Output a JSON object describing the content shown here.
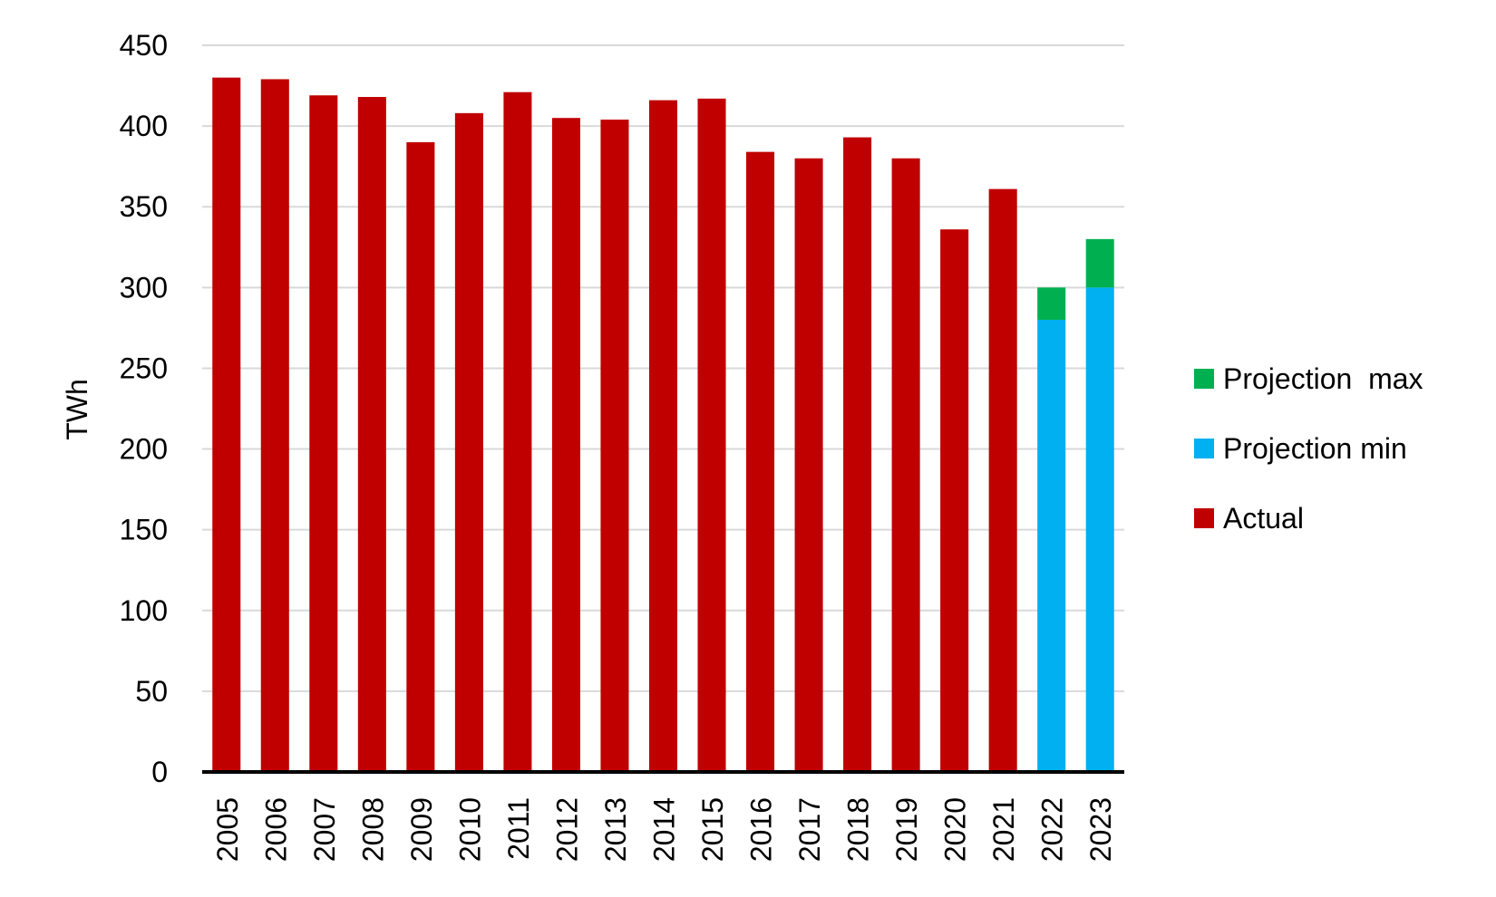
{
  "chart_data": {
    "type": "bar",
    "stacked": true,
    "title": "",
    "xlabel": "",
    "ylabel": "TWh",
    "ylim": [
      0,
      450
    ],
    "yticks": [
      0,
      50,
      100,
      150,
      200,
      250,
      300,
      350,
      400,
      450
    ],
    "grid": true,
    "legend_position": "right",
    "categories": [
      "2005",
      "2006",
      "2007",
      "2008",
      "2009",
      "2010",
      "2011",
      "2012",
      "2013",
      "2014",
      "2015",
      "2016",
      "2017",
      "2018",
      "2019",
      "2020",
      "2021",
      "2022",
      "2023"
    ],
    "series": [
      {
        "name": "Actual",
        "color": "#C00000",
        "values": [
          430,
          429,
          419,
          418,
          390,
          408,
          421,
          405,
          404,
          416,
          417,
          384,
          380,
          393,
          380,
          336,
          361,
          0,
          0
        ]
      },
      {
        "name": "Projection min",
        "color": "#00B0F0",
        "values": [
          0,
          0,
          0,
          0,
          0,
          0,
          0,
          0,
          0,
          0,
          0,
          0,
          0,
          0,
          0,
          0,
          0,
          280,
          300
        ]
      },
      {
        "name": "Projection  max",
        "color": "#00B050",
        "values": [
          0,
          0,
          0,
          0,
          0,
          0,
          0,
          0,
          0,
          0,
          0,
          0,
          0,
          0,
          0,
          0,
          0,
          20,
          30
        ]
      }
    ],
    "legend_order": [
      "Projection  max",
      "Projection min",
      "Actual"
    ]
  }
}
